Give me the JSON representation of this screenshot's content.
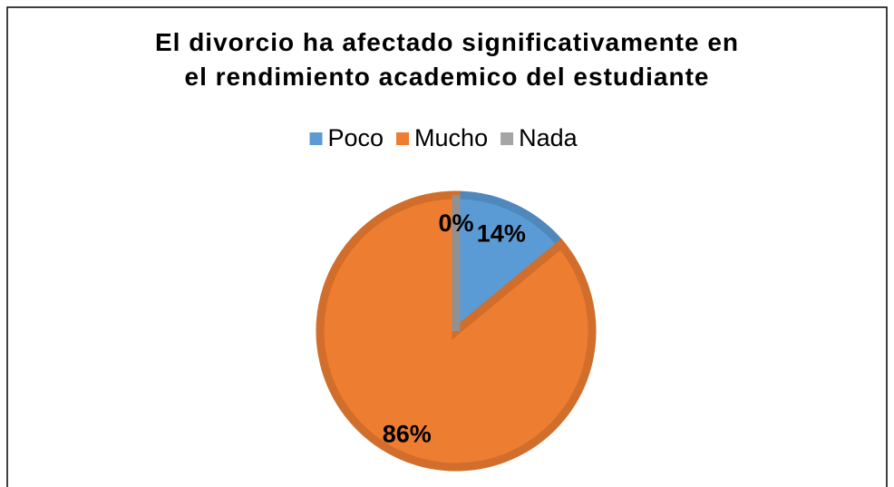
{
  "chart_data": {
    "type": "pie",
    "title": "El divorcio ha afectado significativamente en\nel rendimiento academico del estudiante",
    "categories": [
      "Poco",
      "Mucho",
      "Nada"
    ],
    "values": [
      14,
      86,
      0
    ],
    "value_labels": [
      "14%",
      "86%",
      "0%"
    ],
    "colors": [
      "#5b9bd5",
      "#ed7d31",
      "#a5a5a5"
    ],
    "legend": "top"
  }
}
